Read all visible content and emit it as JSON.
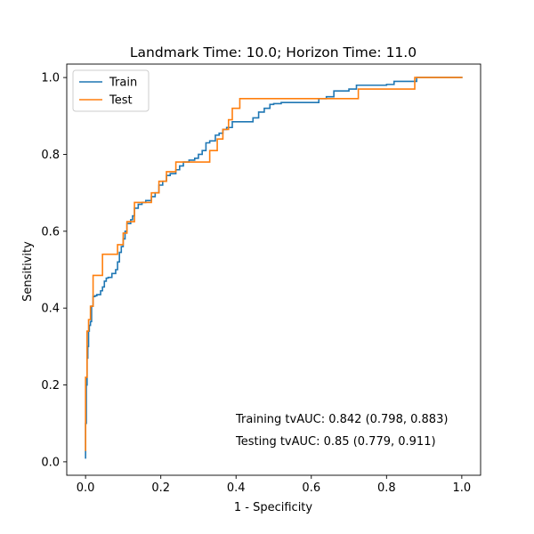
{
  "chart_data": {
    "type": "line",
    "title": "Landmark Time: 10.0; Horizon Time: 11.0",
    "xlabel": "1 - Specificity",
    "ylabel": "Sensitivity",
    "xlim": [
      -0.05,
      1.05
    ],
    "ylim": [
      -0.035,
      1.035
    ],
    "xticks": [
      0.0,
      0.2,
      0.4,
      0.6,
      0.8,
      1.0
    ],
    "xtick_labels": [
      "0.0",
      "0.2",
      "0.4",
      "0.6",
      "0.8",
      "1.0"
    ],
    "yticks": [
      0.0,
      0.2,
      0.4,
      0.6,
      0.8,
      1.0
    ],
    "ytick_labels": [
      "0.0",
      "0.2",
      "0.4",
      "0.6",
      "0.8",
      "1.0"
    ],
    "grid": false,
    "legend_position": "top-left",
    "annotations": [
      "Training tvAUC: 0.842 (0.798, 0.883)",
      "Testing tvAUC: 0.85 (0.779, 0.911)"
    ],
    "series": [
      {
        "name": "Train",
        "color": "#1f77b4",
        "x": [
          0.0,
          0.0,
          0.002,
          0.002,
          0.004,
          0.004,
          0.006,
          0.006,
          0.008,
          0.008,
          0.01,
          0.01,
          0.013,
          0.013,
          0.016,
          0.016,
          0.02,
          0.02,
          0.025,
          0.025,
          0.03,
          0.03,
          0.04,
          0.04,
          0.045,
          0.045,
          0.05,
          0.05,
          0.055,
          0.055,
          0.06,
          0.06,
          0.07,
          0.07,
          0.08,
          0.08,
          0.085,
          0.085,
          0.09,
          0.09,
          0.095,
          0.095,
          0.1,
          0.1,
          0.105,
          0.105,
          0.11,
          0.11,
          0.12,
          0.12,
          0.125,
          0.125,
          0.13,
          0.13,
          0.14,
          0.14,
          0.15,
          0.15,
          0.16,
          0.16,
          0.175,
          0.175,
          0.185,
          0.185,
          0.195,
          0.195,
          0.205,
          0.205,
          0.215,
          0.215,
          0.225,
          0.225,
          0.24,
          0.24,
          0.25,
          0.25,
          0.26,
          0.26,
          0.275,
          0.275,
          0.29,
          0.29,
          0.3,
          0.3,
          0.31,
          0.31,
          0.32,
          0.32,
          0.33,
          0.33,
          0.345,
          0.345,
          0.355,
          0.355,
          0.365,
          0.365,
          0.375,
          0.375,
          0.39,
          0.39,
          0.445,
          0.445,
          0.46,
          0.46,
          0.475,
          0.475,
          0.49,
          0.49,
          0.5,
          0.5,
          0.52,
          0.52,
          0.62,
          0.62,
          0.64,
          0.64,
          0.66,
          0.66,
          0.7,
          0.7,
          0.72,
          0.72,
          0.8,
          0.8,
          0.82,
          0.82,
          0.88,
          0.88,
          1.0
        ],
        "y": [
          0.01,
          0.1,
          0.1,
          0.2,
          0.2,
          0.27,
          0.27,
          0.3,
          0.3,
          0.34,
          0.34,
          0.355,
          0.355,
          0.365,
          0.365,
          0.405,
          0.405,
          0.43,
          0.43,
          0.432,
          0.432,
          0.435,
          0.435,
          0.445,
          0.445,
          0.455,
          0.455,
          0.47,
          0.47,
          0.478,
          0.478,
          0.48,
          0.48,
          0.49,
          0.49,
          0.5,
          0.5,
          0.52,
          0.52,
          0.545,
          0.545,
          0.56,
          0.56,
          0.58,
          0.58,
          0.6,
          0.6,
          0.62,
          0.62,
          0.63,
          0.63,
          0.64,
          0.64,
          0.66,
          0.66,
          0.67,
          0.67,
          0.675,
          0.675,
          0.68,
          0.68,
          0.69,
          0.69,
          0.7,
          0.7,
          0.72,
          0.72,
          0.73,
          0.73,
          0.745,
          0.745,
          0.75,
          0.75,
          0.76,
          0.76,
          0.77,
          0.77,
          0.78,
          0.78,
          0.785,
          0.785,
          0.79,
          0.79,
          0.8,
          0.8,
          0.81,
          0.81,
          0.83,
          0.83,
          0.835,
          0.835,
          0.85,
          0.85,
          0.855,
          0.855,
          0.865,
          0.865,
          0.87,
          0.87,
          0.885,
          0.885,
          0.895,
          0.895,
          0.91,
          0.91,
          0.92,
          0.92,
          0.93,
          0.93,
          0.932,
          0.932,
          0.935,
          0.935,
          0.945,
          0.945,
          0.95,
          0.95,
          0.965,
          0.965,
          0.97,
          0.97,
          0.98,
          0.98,
          0.982,
          0.982,
          0.99,
          0.99,
          1.0,
          1.0
        ]
      },
      {
        "name": "Test",
        "color": "#ff7f0e",
        "x": [
          0.0,
          0.0,
          0.004,
          0.004,
          0.008,
          0.008,
          0.013,
          0.013,
          0.02,
          0.02,
          0.045,
          0.045,
          0.085,
          0.085,
          0.1,
          0.1,
          0.11,
          0.11,
          0.13,
          0.13,
          0.175,
          0.175,
          0.195,
          0.195,
          0.215,
          0.215,
          0.24,
          0.24,
          0.33,
          0.33,
          0.35,
          0.35,
          0.365,
          0.365,
          0.38,
          0.38,
          0.39,
          0.39,
          0.41,
          0.41,
          0.725,
          0.725,
          0.875,
          0.875,
          1.0
        ],
        "y": [
          0.03,
          0.22,
          0.22,
          0.34,
          0.34,
          0.37,
          0.37,
          0.405,
          0.405,
          0.485,
          0.485,
          0.54,
          0.54,
          0.565,
          0.565,
          0.595,
          0.595,
          0.625,
          0.625,
          0.675,
          0.675,
          0.7,
          0.7,
          0.73,
          0.73,
          0.755,
          0.755,
          0.78,
          0.78,
          0.81,
          0.81,
          0.84,
          0.84,
          0.865,
          0.865,
          0.89,
          0.89,
          0.92,
          0.92,
          0.945,
          0.945,
          0.97,
          0.97,
          1.0,
          1.0
        ]
      }
    ]
  }
}
